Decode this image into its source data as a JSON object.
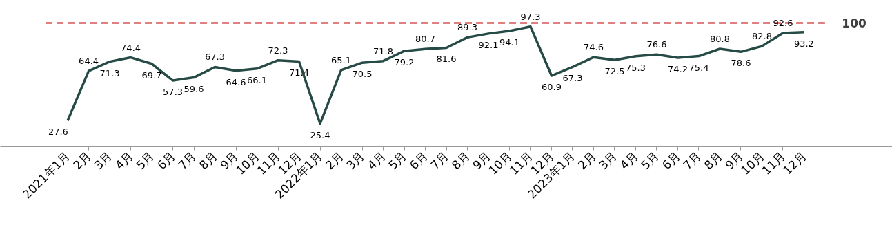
{
  "chart_data": {
    "type": "line",
    "categories": [
      "2021年1月",
      "2月",
      "3月",
      "4月",
      "5月",
      "6月",
      "7月",
      "8月",
      "9月",
      "10月",
      "11月",
      "12月",
      "2022年1月",
      "2月",
      "3月",
      "4月",
      "5月",
      "6月",
      "7月",
      "8月",
      "9月",
      "10月",
      "11月",
      "12月",
      "2023年1月",
      "2月",
      "3月",
      "4月",
      "5月",
      "6月",
      "7月",
      "8月",
      "9月",
      "10月",
      "11月",
      "12月"
    ],
    "values": [
      27.6,
      64.4,
      71.3,
      74.4,
      69.7,
      57.3,
      59.6,
      67.3,
      64.6,
      66.1,
      72.3,
      71.4,
      25.4,
      65.1,
      70.5,
      71.8,
      79.2,
      80.7,
      81.6,
      89.3,
      92.1,
      94.1,
      97.3,
      60.9,
      67.3,
      74.6,
      72.5,
      75.3,
      76.6,
      74.2,
      75.4,
      80.8,
      78.6,
      82.8,
      92.6,
      93.2
    ],
    "color": "#264a45",
    "data_labels": true,
    "ref_lines": [
      {
        "axis": "y",
        "value": 100,
        "label": "100",
        "color": "#c00000",
        "line_style": "dashed"
      }
    ],
    "tick_labels": "x",
    "grid": false
  }
}
